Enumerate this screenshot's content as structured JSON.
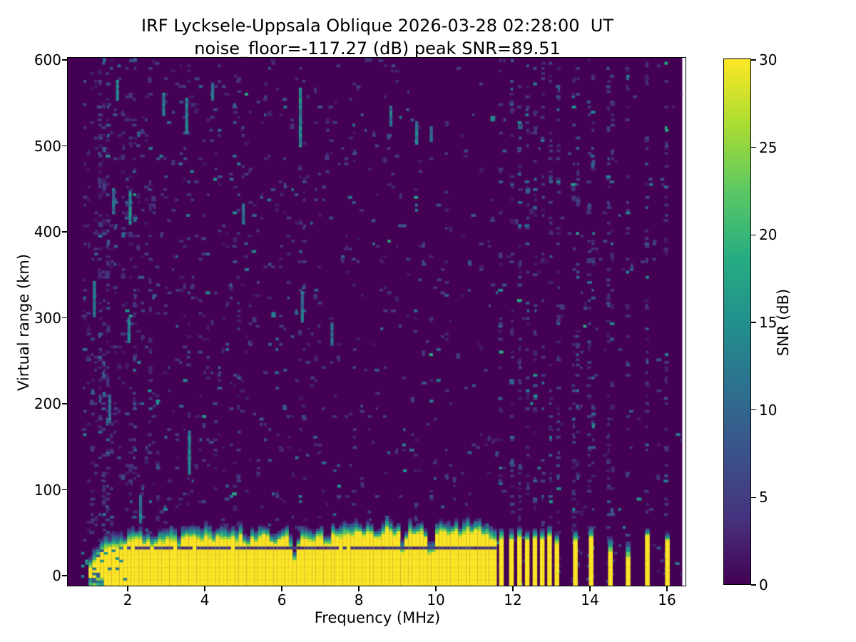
{
  "title": {
    "line1": "IRF Lycksele-Uppsala Oblique 2026-03-28 02:28:00  UT",
    "line2": "noise_floor=-117.27 (dB) peak SNR=89.51"
  },
  "axes": {
    "xlabel": "Frequency (MHz)",
    "ylabel": "Virtual range (km)",
    "xticks": [
      2,
      4,
      6,
      8,
      10,
      12,
      14,
      16
    ],
    "yticks": [
      0,
      100,
      200,
      300,
      400,
      500,
      600
    ],
    "xlim": [
      0.46,
      16.5
    ],
    "ylim": [
      -12.4,
      601.7
    ]
  },
  "colorbar": {
    "label": "SNR (dB)",
    "ticks": [
      0,
      5,
      10,
      15,
      20,
      25,
      30
    ],
    "min": 0,
    "max": 30
  },
  "chart_data": {
    "type": "heatmap",
    "title": "IRF Lycksele-Uppsala Oblique 2026-03-28 02:28:00  UT",
    "subtitle": "noise_floor=-117.27 (dB) peak SNR=89.51",
    "xlabel": "Frequency (MHz)",
    "ylabel": "Virtual range (km)",
    "zlabel": "SNR (dB)",
    "xlim": [
      0.46,
      16.5
    ],
    "ylim": [
      -12.4,
      601.7
    ],
    "clim": [
      0,
      30
    ],
    "noise_floor_db": -117.27,
    "peak_snr_db": 89.51,
    "colormap": "viridis",
    "colormap_stops": [
      [
        0,
        "#440154"
      ],
      [
        0.125,
        "#46327e"
      ],
      [
        0.25,
        "#3b528b"
      ],
      [
        0.375,
        "#2c718e"
      ],
      [
        0.5,
        "#21908d"
      ],
      [
        0.625,
        "#27ad81"
      ],
      [
        0.75,
        "#5cc863"
      ],
      [
        0.875,
        "#aadc32"
      ],
      [
        1,
        "#fde725"
      ]
    ],
    "background_snr_db": 0,
    "data_start_mhz": 0.5,
    "data_end_mhz": 16.42,
    "freq_bin_mhz": 0.1,
    "range_bin_km": 3,
    "noise": {
      "seed": 1337,
      "base_probability": 0.035,
      "density_by_freq": [
        [
          0.85,
          0
        ],
        [
          1.7,
          2.8
        ],
        [
          2.6,
          2.1
        ],
        [
          4.0,
          1.7
        ],
        [
          6.0,
          1.35
        ],
        [
          8.0,
          1.05
        ],
        [
          10.0,
          0.8
        ],
        [
          11.65,
          0.55
        ]
      ],
      "sparse_probability_above_band_end": 0.012,
      "stripe_column_probability": 0.2,
      "dense_columns_mhz": [
        1.3,
        1.45,
        2.15,
        2.6,
        3.6,
        4.85,
        6.5,
        6.62,
        7.9,
        9.5,
        10.3
      ]
    },
    "ground_band": {
      "f_start_mhz": 1.05,
      "f_end_mhz": 11.63,
      "yellow_top_profile_km": [
        [
          1.05,
          8
        ],
        [
          1.1,
          14
        ],
        [
          1.2,
          20
        ],
        [
          1.3,
          24
        ],
        [
          1.45,
          30
        ],
        [
          1.6,
          33
        ],
        [
          1.75,
          30
        ],
        [
          1.9,
          34
        ],
        [
          2.0,
          36
        ],
        [
          2.1,
          40
        ],
        [
          2.2,
          48
        ],
        [
          2.3,
          42
        ],
        [
          2.45,
          36
        ],
        [
          2.6,
          40
        ],
        [
          2.65,
          34
        ],
        [
          2.8,
          42
        ],
        [
          2.95,
          38
        ],
        [
          3.1,
          44
        ],
        [
          3.25,
          40
        ],
        [
          3.35,
          32
        ],
        [
          3.5,
          46
        ],
        [
          3.65,
          42
        ],
        [
          3.8,
          46
        ],
        [
          3.95,
          40
        ],
        [
          4.1,
          46
        ],
        [
          4.25,
          40
        ],
        [
          4.4,
          46
        ],
        [
          4.55,
          42
        ],
        [
          4.7,
          46
        ],
        [
          4.85,
          40
        ],
        [
          5.0,
          46
        ],
        [
          5.1,
          30
        ],
        [
          5.25,
          44
        ],
        [
          5.4,
          40
        ],
        [
          5.55,
          46
        ],
        [
          5.7,
          42
        ],
        [
          5.85,
          38
        ],
        [
          6.0,
          44
        ],
        [
          6.15,
          46
        ],
        [
          6.35,
          18
        ],
        [
          6.5,
          46
        ],
        [
          6.65,
          44
        ],
        [
          6.8,
          40
        ],
        [
          7.0,
          46
        ],
        [
          7.2,
          32
        ],
        [
          7.35,
          46
        ],
        [
          7.5,
          44
        ],
        [
          7.65,
          48
        ],
        [
          7.8,
          44
        ],
        [
          8.0,
          50
        ],
        [
          8.15,
          46
        ],
        [
          8.3,
          50
        ],
        [
          8.45,
          44
        ],
        [
          8.6,
          48
        ],
        [
          8.75,
          52
        ],
        [
          8.9,
          46
        ],
        [
          9.05,
          50
        ],
        [
          9.15,
          26
        ],
        [
          9.3,
          52
        ],
        [
          9.45,
          48
        ],
        [
          9.6,
          50
        ],
        [
          9.75,
          44
        ],
        [
          9.9,
          16
        ],
        [
          10.05,
          50
        ],
        [
          10.2,
          52
        ],
        [
          10.35,
          48
        ],
        [
          10.5,
          52
        ],
        [
          10.65,
          48
        ],
        [
          10.8,
          52
        ],
        [
          10.95,
          50
        ],
        [
          11.1,
          54
        ],
        [
          11.25,
          48
        ],
        [
          11.4,
          46
        ],
        [
          11.55,
          42
        ],
        [
          11.63,
          40
        ]
      ],
      "fade_km_min": 10,
      "fade_km_max": 20,
      "dark_notch_line_km": 32,
      "dark_notch_line_f_start": 2.0
    },
    "stripes": [
      {
        "f": 11.72,
        "yellow_top_km": 44,
        "cap_km": 58
      },
      {
        "f": 11.98,
        "yellow_top_km": 42,
        "cap_km": 56
      },
      {
        "f": 12.19,
        "yellow_top_km": 45,
        "cap_km": 60
      },
      {
        "f": 12.39,
        "yellow_top_km": 40,
        "cap_km": 54
      },
      {
        "f": 12.59,
        "yellow_top_km": 43,
        "cap_km": 58
      },
      {
        "f": 12.78,
        "yellow_top_km": 41,
        "cap_km": 55
      },
      {
        "f": 12.97,
        "yellow_top_km": 44,
        "cap_km": 59
      },
      {
        "f": 13.16,
        "yellow_top_km": 38,
        "cap_km": 52
      },
      {
        "f": 13.64,
        "yellow_top_km": 42,
        "cap_km": 56
      },
      {
        "f": 14.05,
        "yellow_top_km": 44,
        "cap_km": 60
      },
      {
        "f": 14.55,
        "yellow_top_km": 28,
        "cap_km": 48
      },
      {
        "f": 15.01,
        "yellow_top_km": 20,
        "cap_km": 42
      },
      {
        "f": 15.51,
        "yellow_top_km": 46,
        "cap_km": 55
      },
      {
        "f": 16.03,
        "yellow_top_km": 42,
        "cap_km": 54
      }
    ],
    "streaks": [
      {
        "f": 1.75,
        "v0": 552,
        "v1": 576,
        "snr": 14
      },
      {
        "f": 2.08,
        "v0": 408,
        "v1": 446,
        "snr": 15
      },
      {
        "f": 2.05,
        "v0": 272,
        "v1": 300,
        "snr": 13
      },
      {
        "f": 1.55,
        "v0": 178,
        "v1": 210,
        "snr": 12
      },
      {
        "f": 3.55,
        "v0": 513,
        "v1": 553,
        "snr": 13
      },
      {
        "f": 3.62,
        "v0": 118,
        "v1": 168,
        "snr": 14
      },
      {
        "f": 4.22,
        "v0": 552,
        "v1": 572,
        "snr": 12
      },
      {
        "f": 6.5,
        "v0": 500,
        "v1": 565,
        "snr": 15
      },
      {
        "f": 6.55,
        "v0": 296,
        "v1": 330,
        "snr": 12
      },
      {
        "f": 8.85,
        "v0": 522,
        "v1": 546,
        "snr": 12
      },
      {
        "f": 9.52,
        "v0": 503,
        "v1": 526,
        "snr": 14
      },
      {
        "f": 7.32,
        "v0": 268,
        "v1": 292,
        "snr": 11
      },
      {
        "f": 5.02,
        "v0": 408,
        "v1": 430,
        "snr": 11
      },
      {
        "f": 2.35,
        "v0": 60,
        "v1": 92,
        "snr": 13
      },
      {
        "f": 1.15,
        "v0": 300,
        "v1": 340,
        "snr": 12
      },
      {
        "f": 1.65,
        "v0": 420,
        "v1": 450,
        "snr": 12
      },
      {
        "f": 2.95,
        "v0": 535,
        "v1": 560,
        "snr": 13
      },
      {
        "f": 9.9,
        "v0": 505,
        "v1": 522,
        "snr": 12
      }
    ]
  }
}
